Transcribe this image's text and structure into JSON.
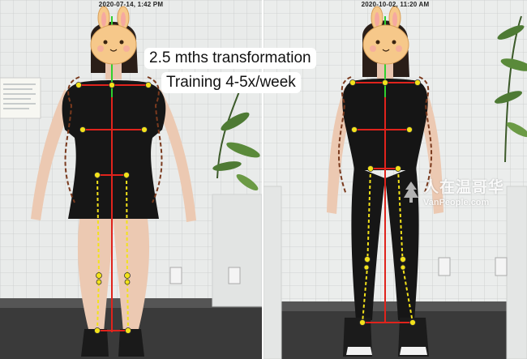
{
  "timestamps": {
    "before": "2020-07-14, 1:42 PM",
    "after": "2020-10-02, 11:20 AM"
  },
  "captions": {
    "line1": "2.5 mths transformation",
    "line2": "Training 4-5x/week"
  },
  "watermark": {
    "chinese": "人在温哥华",
    "url": "VanPeople.com"
  },
  "colors": {
    "center_line_green": "#2fd02f",
    "center_line_red": "#e0231c",
    "measure_red": "#e0231c",
    "joint_yellow": "#f3e21a",
    "outline_brown": "#7a3a1e",
    "outfit_black": "#151515",
    "mask_face": "#f6c88a"
  },
  "icons": {
    "face_mask": "bunny-face-icon",
    "watermark_logo": "vanpeople-logo-icon"
  }
}
